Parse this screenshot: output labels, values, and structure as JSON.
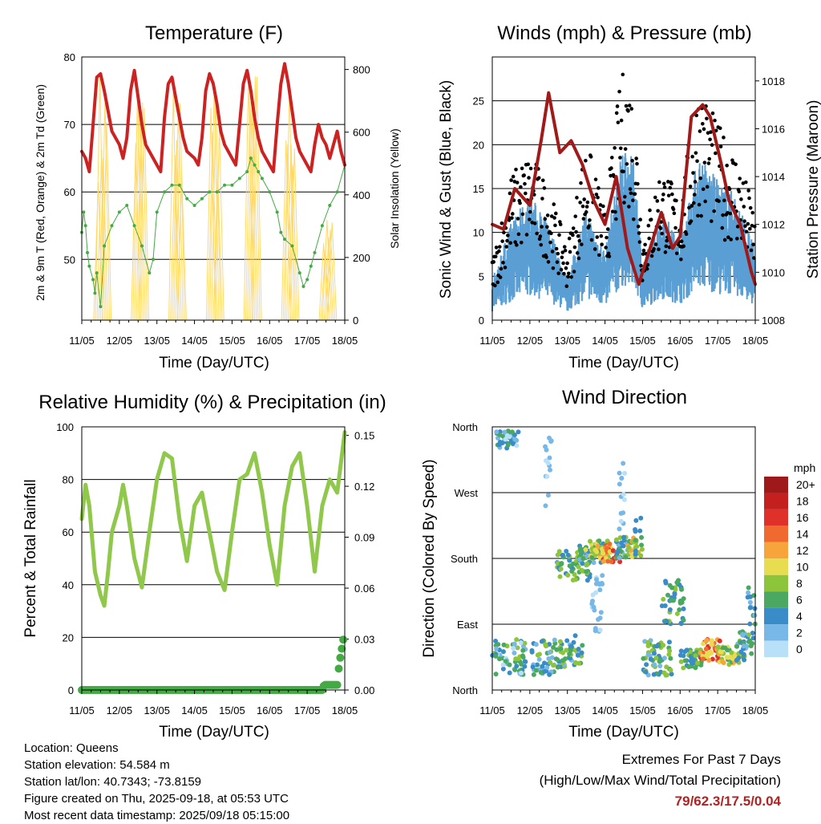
{
  "colors": {
    "red": "#cc2222",
    "green": "#44aa44",
    "yellow": "#ffd966",
    "black": "#000000",
    "blue": "#5a9fd4",
    "maroon": "#a11a1a",
    "rh": "#8fc84a",
    "precip": "#44aa44"
  },
  "panels": {
    "temperature": {
      "title": "Temperature (F)",
      "ylabel_left": "2m & 9m T (Red, Orange) & 2m Td (Green)",
      "ylabel_right": "Solar Insolation (Yellow)",
      "xlabel": "Time (Day/UTC)"
    },
    "winds": {
      "title": "Winds (mph) & Pressure (mb)",
      "ylabel_left": "Sonic Wind & Gust (Blue, Black)",
      "ylabel_right": "Station Pressure (Maroon)",
      "xlabel": "Time (Day/UTC)"
    },
    "rh": {
      "title": "Relative Humidity (%) & Precipitation (in)",
      "ylabel_left": "Percent & Total Rainfall",
      "xlabel": "Time (Day/UTC)"
    },
    "direction": {
      "title": "Wind Direction",
      "ylabel_left": "Direction (Colored By Speed)",
      "xlabel": "Time (Day/UTC)",
      "colorbar_title": "mph"
    }
  },
  "footer": {
    "location": "Location: Queens",
    "elevation": "Station elevation: 54.584 m",
    "latlon": "Station lat/lon: 40.7343; -73.8159",
    "created": "Figure created on Thu, 2025-09-18, at 05:53 UTC",
    "recent": "Most recent data timestamp: 2025/09/18 05:15:00"
  },
  "extremes": {
    "line1": "Extremes For Past 7 Days",
    "line2": "(High/Low/Max Wind/Total Precipitation)",
    "values": "79/62.3/17.5/0.04"
  },
  "chart_data": [
    {
      "type": "line",
      "title": "Temperature (F)",
      "xlabel": "Time (Day/UTC)",
      "x_ticks": [
        "11/05",
        "12/05",
        "13/05",
        "14/05",
        "15/05",
        "16/05",
        "17/05",
        "18/05"
      ],
      "y_left": {
        "label": "2m & 9m T (Red, Orange) & 2m Td (Green)",
        "ticks": [
          50,
          60,
          70,
          80
        ],
        "range": [
          41,
          80
        ]
      },
      "y_right": {
        "label": "Solar Insolation (Yellow)",
        "ticks": [
          0,
          200,
          400,
          600,
          800
        ],
        "range": [
          0,
          840
        ]
      },
      "series": [
        {
          "name": "T",
          "axis": "left",
          "color": "#cc2222",
          "x": [
            0,
            0.1,
            0.2,
            0.3,
            0.4,
            0.5,
            0.6,
            0.7,
            0.8,
            1.0,
            1.1,
            1.2,
            1.3,
            1.4,
            1.5,
            1.6,
            1.7,
            1.8,
            2.0,
            2.1,
            2.2,
            2.3,
            2.4,
            2.5,
            2.6,
            2.7,
            2.8,
            3.0,
            3.1,
            3.2,
            3.3,
            3.4,
            3.5,
            3.6,
            3.7,
            3.8,
            4.0,
            4.1,
            4.2,
            4.3,
            4.4,
            4.5,
            4.6,
            4.7,
            4.8,
            5.0,
            5.1,
            5.2,
            5.3,
            5.4,
            5.5,
            5.6,
            5.7,
            5.8,
            6.0,
            6.1,
            6.2,
            6.3,
            6.4,
            6.5,
            6.6,
            6.7,
            6.8,
            6.9,
            7.0
          ],
          "y": [
            66,
            65,
            63,
            70,
            77,
            77.5,
            75,
            72,
            69,
            67,
            65,
            68,
            75,
            78,
            74,
            70,
            67,
            66,
            64,
            63,
            71,
            76,
            77,
            74,
            71,
            68,
            66,
            65,
            64,
            68,
            75,
            77.5,
            76,
            73,
            69,
            67,
            65,
            64,
            70,
            76,
            78,
            75,
            71,
            68,
            66,
            64,
            63,
            70,
            76,
            79,
            76,
            72,
            68,
            66,
            64,
            63,
            67,
            70,
            68,
            67,
            65,
            67,
            69,
            66,
            64
          ]
        },
        {
          "name": "Td",
          "axis": "left",
          "color": "#44aa44",
          "x": [
            0,
            0.05,
            0.1,
            0.15,
            0.2,
            0.3,
            0.35,
            0.4,
            0.5,
            0.6,
            0.8,
            1.0,
            1.2,
            1.4,
            1.6,
            1.8,
            1.9,
            2.0,
            2.2,
            2.4,
            2.6,
            2.8,
            3.0,
            3.2,
            3.4,
            3.6,
            3.8,
            4.0,
            4.2,
            4.4,
            4.5,
            4.6,
            4.7,
            4.8,
            5.0,
            5.2,
            5.3,
            5.4,
            5.6,
            5.8,
            5.9,
            6.0,
            6.1,
            6.2,
            6.4,
            6.6,
            6.8,
            7.0
          ],
          "y": [
            54,
            57,
            55,
            51,
            49,
            47,
            45,
            48,
            43,
            52,
            55,
            57,
            58,
            55,
            52,
            48,
            50,
            57,
            60,
            61,
            61,
            59,
            58,
            59,
            60,
            60,
            61,
            61,
            62,
            63,
            65,
            64,
            63,
            62,
            60,
            57,
            54,
            53,
            52,
            48,
            46,
            47,
            49,
            51,
            55,
            58,
            60,
            64
          ]
        },
        {
          "name": "Solar",
          "axis": "right",
          "color": "#ffd966",
          "days": [
            0,
            1,
            2,
            3,
            4,
            5,
            6
          ],
          "peaks": [
            800,
            810,
            800,
            790,
            810,
            800,
            330
          ]
        }
      ]
    },
    {
      "type": "scatter",
      "title": "Winds (mph) & Pressure (mb)",
      "xlabel": "Time (Day/UTC)",
      "x_ticks": [
        "11/05",
        "12/05",
        "13/05",
        "14/05",
        "15/05",
        "16/05",
        "17/05",
        "18/05"
      ],
      "y_left": {
        "label": "Sonic Wind & Gust (Blue, Black)",
        "ticks": [
          0,
          5,
          10,
          15,
          20,
          25
        ],
        "range": [
          0,
          30
        ]
      },
      "y_right": {
        "label": "Station Pressure (Maroon)",
        "ticks": [
          1008,
          1010,
          1012,
          1014,
          1016,
          1018
        ],
        "range": [
          1008,
          1019
        ]
      },
      "series": [
        {
          "name": "Gust",
          "axis": "left",
          "color": "#000000",
          "x": [
            0,
            0.5,
            1.0,
            1.5,
            2.0,
            2.5,
            3.0,
            3.5,
            3.8,
            4.0,
            4.5,
            5.0,
            5.5,
            6.0,
            6.5,
            7.0
          ],
          "y": [
            5,
            12,
            14,
            11,
            6,
            15,
            9,
            22,
            18,
            7,
            13,
            10,
            20,
            16,
            14,
            9
          ]
        },
        {
          "name": "Wind",
          "axis": "left",
          "color": "#5a9fd4",
          "x": [
            0,
            0.5,
            1.0,
            1.5,
            2.0,
            2.5,
            3.0,
            3.5,
            3.8,
            4.0,
            4.5,
            5.0,
            5.5,
            6.0,
            6.5,
            7.0
          ],
          "y": [
            3,
            7,
            9,
            7,
            3,
            8,
            5,
            13,
            11,
            4,
            8,
            6,
            12,
            10,
            9,
            5
          ]
        },
        {
          "name": "Pressure",
          "axis": "right",
          "color": "#a11a1a",
          "x": [
            0,
            0.3,
            0.6,
            1.0,
            1.3,
            1.5,
            1.8,
            2.1,
            2.4,
            2.7,
            3.0,
            3.3,
            3.6,
            3.9,
            4.2,
            4.5,
            4.8,
            5.0,
            5.3,
            5.6,
            5.8,
            6.1,
            6.3,
            6.6,
            6.9,
            7.0
          ],
          "y": [
            1012,
            1011.8,
            1013.5,
            1012.8,
            1015.5,
            1017.5,
            1015,
            1015.5,
            1014.5,
            1013,
            1012,
            1014,
            1011,
            1009.5,
            1011,
            1012.5,
            1011,
            1011.5,
            1016.5,
            1017,
            1016.5,
            1014.5,
            1013,
            1012,
            1010,
            1009.5
          ]
        }
      ]
    },
    {
      "type": "line",
      "title": "Relative Humidity (%) & Precipitation (in)",
      "xlabel": "Time (Day/UTC)",
      "x_ticks": [
        "11/05",
        "12/05",
        "13/05",
        "14/05",
        "15/05",
        "16/05",
        "17/05",
        "18/05"
      ],
      "y_left": {
        "label": "Percent & Total Rainfall",
        "ticks": [
          0,
          20,
          40,
          60,
          80,
          100
        ],
        "range": [
          0,
          100
        ]
      },
      "y_right": {
        "ticks": [
          "0.00",
          "0.03",
          "0.06",
          "0.09",
          "0.12",
          "0.15"
        ],
        "range": [
          0,
          0.155
        ]
      },
      "series": [
        {
          "name": "RH",
          "axis": "left",
          "color": "#8fc84a",
          "x": [
            0,
            0.1,
            0.2,
            0.35,
            0.5,
            0.6,
            0.7,
            0.8,
            1.0,
            1.1,
            1.2,
            1.4,
            1.6,
            1.8,
            2.0,
            2.2,
            2.4,
            2.6,
            2.8,
            3.0,
            3.2,
            3.4,
            3.6,
            3.8,
            4.0,
            4.2,
            4.4,
            4.6,
            4.8,
            5.0,
            5.2,
            5.4,
            5.6,
            5.8,
            6.0,
            6.2,
            6.4,
            6.6,
            6.8,
            7.0
          ],
          "y": [
            65,
            78,
            70,
            45,
            36,
            32,
            45,
            60,
            70,
            78,
            70,
            50,
            39,
            60,
            80,
            90,
            88,
            65,
            49,
            70,
            75,
            60,
            45,
            38,
            60,
            80,
            82,
            90,
            75,
            55,
            40,
            70,
            85,
            90,
            70,
            45,
            70,
            80,
            75,
            98
          ]
        },
        {
          "name": "Precip",
          "axis": "right",
          "color": "#44aa44",
          "x": [
            0,
            6.4,
            6.45,
            6.8,
            6.85,
            7.0
          ],
          "y": [
            0,
            0,
            0.003,
            0.003,
            0.015,
            0.035
          ]
        }
      ]
    },
    {
      "type": "scatter",
      "title": "Wind Direction",
      "xlabel": "Time (Day/UTC)",
      "x_ticks": [
        "11/05",
        "12/05",
        "13/05",
        "14/05",
        "15/05",
        "16/05",
        "17/05",
        "18/05"
      ],
      "y_left": {
        "label": "Direction (Colored By Speed)",
        "ticks": [
          "North",
          "East",
          "South",
          "West",
          "North"
        ]
      },
      "colorbar": {
        "title": "mph",
        "labels": [
          "20+",
          "18",
          "16",
          "14",
          "12",
          "10",
          "8",
          "6",
          "4",
          "2",
          "0"
        ],
        "colors": [
          "#9e1a1a",
          "#c42020",
          "#e0302a",
          "#f06a30",
          "#f8a43c",
          "#e8dc50",
          "#8cc43c",
          "#4aa860",
          "#3a8cc8",
          "#78b8e8",
          "#b8e0f8"
        ]
      }
    }
  ]
}
